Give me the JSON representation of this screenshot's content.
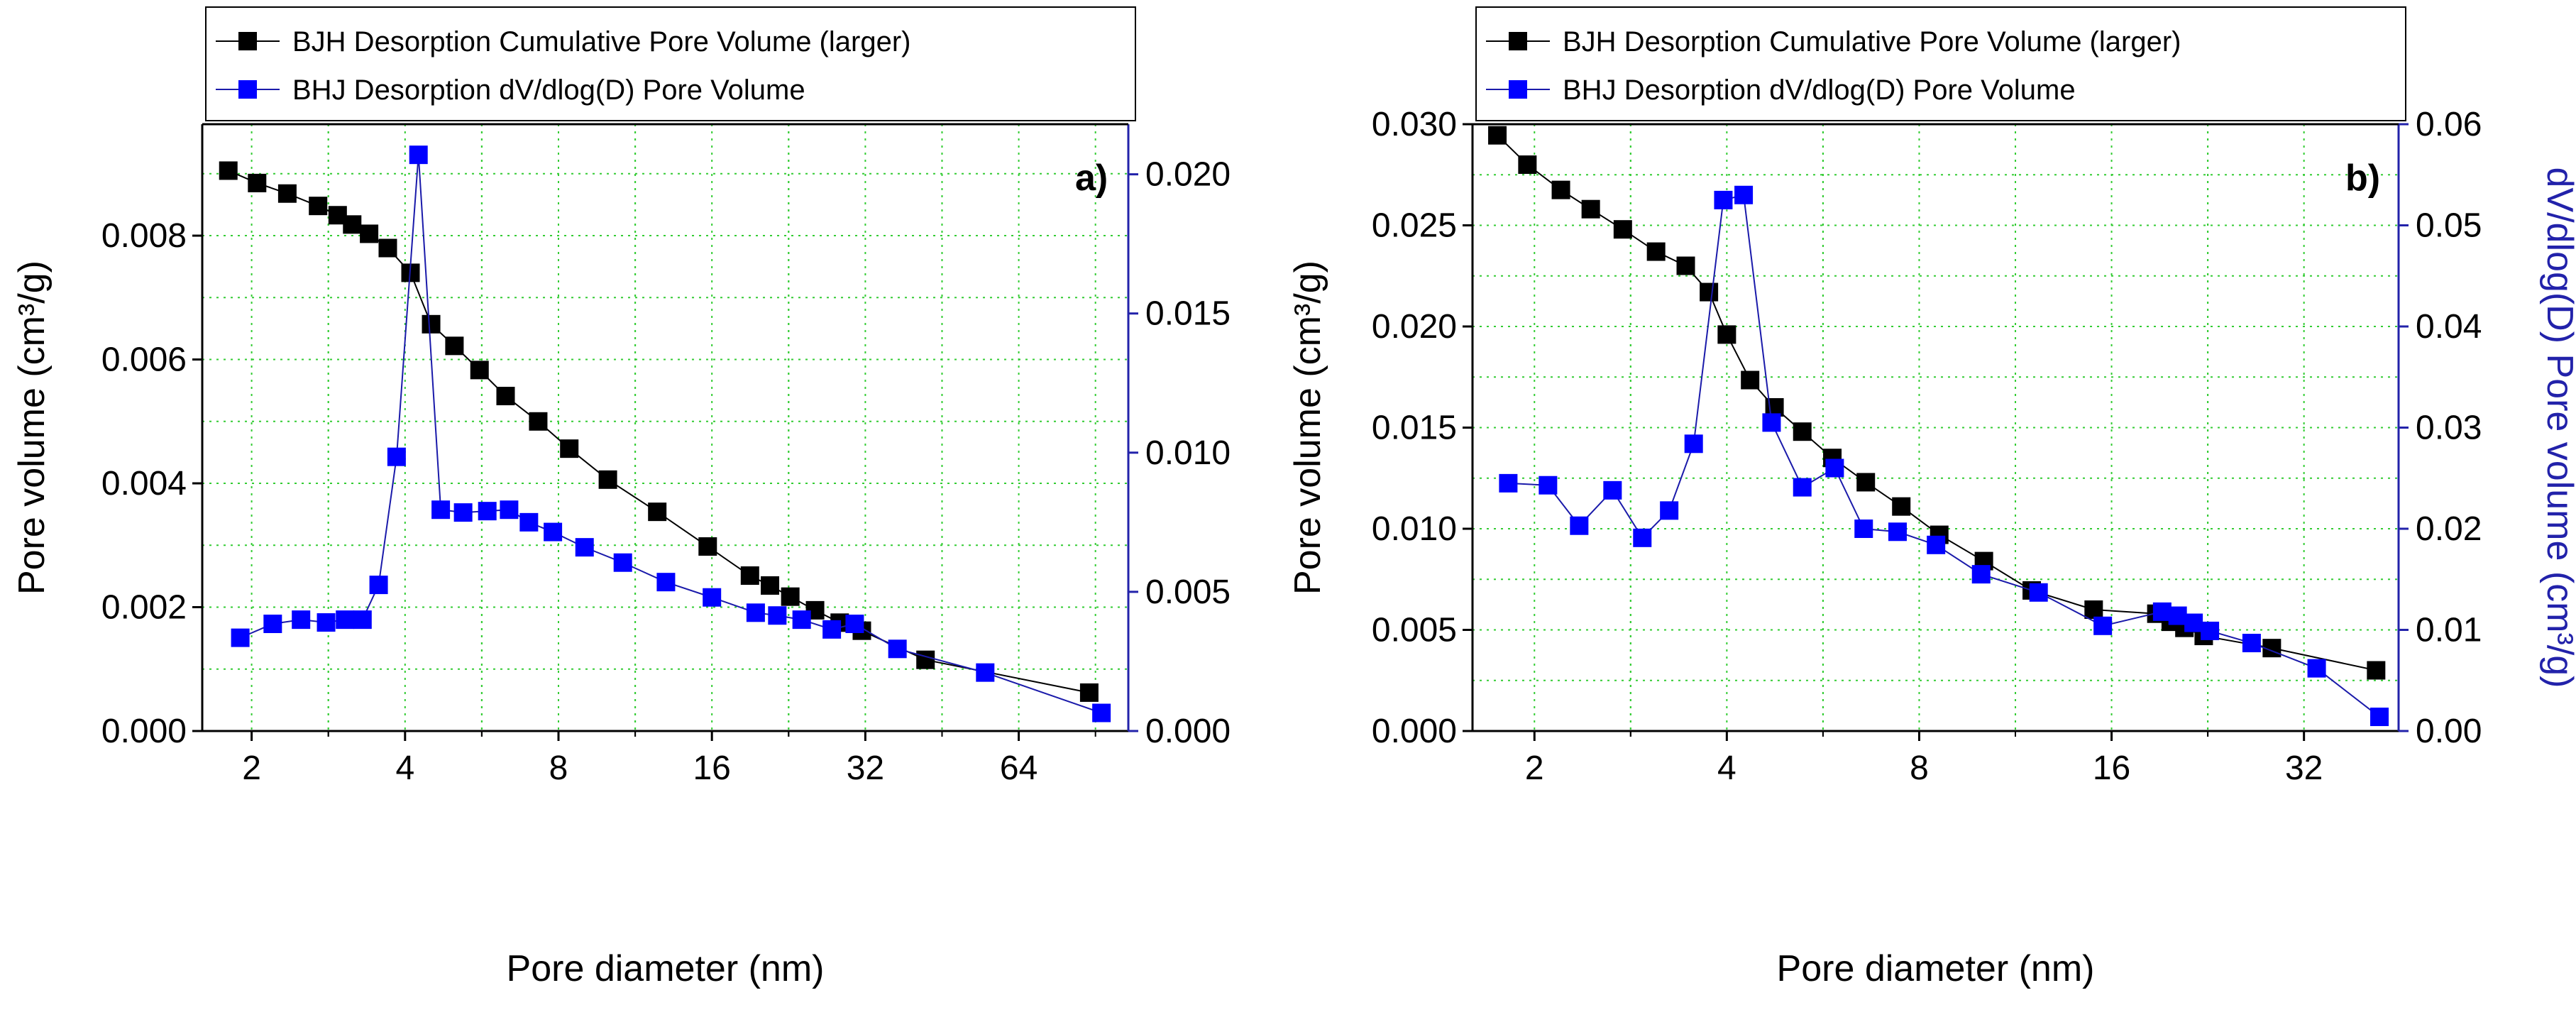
{
  "chart_data": [
    {
      "type": "line",
      "panel_label": "a)",
      "xlabel": "Pore diameter (nm)",
      "ylabel": "Pore volume (cm³/g)",
      "ylabel_right": "",
      "x_scale": "log2",
      "xlim": [
        1.6,
        105
      ],
      "ylim": [
        0,
        0.0098
      ],
      "ylim_right": [
        0,
        0.0218
      ],
      "x_ticks": [
        2,
        4,
        8,
        16,
        32,
        64
      ],
      "x_tick_labels": [
        "2",
        "4",
        "8",
        "16",
        "32",
        "64"
      ],
      "y_ticks": [
        0,
        0.002,
        0.004,
        0.006,
        0.008
      ],
      "y_tick_labels": [
        "0.000",
        "0.002",
        "0.004",
        "0.006",
        "0.008"
      ],
      "y_right_ticks": [
        0,
        0.005,
        0.01,
        0.015,
        0.02
      ],
      "y_right_tick_labels": [
        "0.000",
        "0.005",
        "0.010",
        "0.015",
        "0.020"
      ],
      "grid": true,
      "legend_position": "top-left-outside",
      "series": [
        {
          "name": "BJH Desorption Cumulative Pore Volume (larger)",
          "axis": "left",
          "color": "#000000",
          "marker": "square",
          "x": [
            1.8,
            2.05,
            2.35,
            2.7,
            2.95,
            3.15,
            3.4,
            3.7,
            4.1,
            4.5,
            5.0,
            5.6,
            6.3,
            7.3,
            8.4,
            10.0,
            12.5,
            15.7,
            19.0,
            20.8,
            22.8,
            25.5,
            28.5,
            31.5,
            42.0,
            88.0
          ],
          "y": [
            0.00905,
            0.00885,
            0.00868,
            0.00848,
            0.00833,
            0.00818,
            0.00803,
            0.0078,
            0.0074,
            0.00657,
            0.00622,
            0.00583,
            0.00541,
            0.005,
            0.00456,
            0.00406,
            0.00354,
            0.00298,
            0.00251,
            0.00235,
            0.00217,
            0.00195,
            0.00175,
            0.00162,
            0.00115,
            0.00062
          ]
        },
        {
          "name": "BHJ Desorption dV/dlog(D) Pore Volume",
          "axis": "right",
          "color": "#0000ff",
          "marker": "square",
          "x": [
            1.9,
            2.2,
            2.5,
            2.8,
            3.05,
            3.3,
            3.55,
            3.85,
            4.25,
            4.7,
            5.2,
            5.8,
            6.4,
            7.0,
            7.8,
            9.0,
            10.7,
            13.0,
            16.0,
            19.5,
            21.5,
            24.0,
            27.5,
            30.5,
            37.0,
            55.0,
            93.0
          ],
          "y": [
            0.00335,
            0.00385,
            0.004,
            0.0039,
            0.004,
            0.004,
            0.00525,
            0.00985,
            0.0207,
            0.00795,
            0.00785,
            0.0079,
            0.00795,
            0.0075,
            0.00715,
            0.0066,
            0.00605,
            0.00535,
            0.0048,
            0.00425,
            0.00415,
            0.004,
            0.00365,
            0.00385,
            0.00295,
            0.0021,
            0.00065
          ]
        }
      ]
    },
    {
      "type": "line",
      "panel_label": "b)",
      "xlabel": "Pore diameter (nm)",
      "ylabel": "Pore volume (cm³/g)",
      "ylabel_right": "dV/dlog(D) Pore volume (cm³/g)",
      "x_scale": "log2",
      "xlim": [
        1.6,
        45
      ],
      "ylim": [
        0,
        0.03
      ],
      "ylim_right": [
        0,
        0.06
      ],
      "x_ticks": [
        2,
        4,
        8,
        16,
        32
      ],
      "x_tick_labels": [
        "2",
        "4",
        "8",
        "16",
        "32"
      ],
      "y_ticks": [
        0,
        0.005,
        0.01,
        0.015,
        0.02,
        0.025,
        0.03
      ],
      "y_tick_labels": [
        "0.000",
        "0.005",
        "0.010",
        "0.015",
        "0.020",
        "0.025",
        "0.030"
      ],
      "y_right_ticks": [
        0,
        0.01,
        0.02,
        0.03,
        0.04,
        0.05,
        0.06
      ],
      "y_right_tick_labels": [
        "0.00",
        "0.01",
        "0.02",
        "0.03",
        "0.04",
        "0.05",
        "0.06"
      ],
      "grid": true,
      "legend_position": "top-left-outside",
      "series": [
        {
          "name": "BJH Desorption Cumulative Pore Volume (larger)",
          "axis": "left",
          "color": "#000000",
          "marker": "square",
          "x": [
            1.75,
            1.95,
            2.2,
            2.45,
            2.75,
            3.1,
            3.45,
            3.75,
            4.0,
            4.35,
            4.75,
            5.25,
            5.85,
            6.6,
            7.5,
            8.6,
            10.1,
            12.0,
            15.0,
            18.8,
            19.8,
            20.8,
            22.3,
            28.5,
            41.5
          ],
          "y": [
            0.02945,
            0.028,
            0.02675,
            0.0258,
            0.0248,
            0.0237,
            0.023,
            0.0217,
            0.0196,
            0.01735,
            0.016,
            0.0148,
            0.0135,
            0.0123,
            0.0111,
            0.0097,
            0.0084,
            0.00695,
            0.006,
            0.0058,
            0.0054,
            0.0051,
            0.0047,
            0.0041,
            0.003
          ]
        },
        {
          "name": "BHJ Desorption dV/dlog(D) Pore Volume",
          "axis": "right",
          "color": "#0000ff",
          "marker": "square",
          "x": [
            1.82,
            2.1,
            2.35,
            2.65,
            2.95,
            3.25,
            3.55,
            3.95,
            4.25,
            4.7,
            5.25,
            5.9,
            6.55,
            7.4,
            8.5,
            10.0,
            12.3,
            15.5,
            19.2,
            20.3,
            21.5,
            22.8,
            26.5,
            33.5,
            42.0
          ],
          "y": [
            0.0245,
            0.0243,
            0.0203,
            0.0238,
            0.0191,
            0.0218,
            0.0284,
            0.0525,
            0.053,
            0.0305,
            0.0241,
            0.026,
            0.02,
            0.0197,
            0.0184,
            0.0155,
            0.0137,
            0.0104,
            0.0118,
            0.0114,
            0.0107,
            0.0099,
            0.0087,
            0.0062,
            0.0014
          ]
        }
      ]
    }
  ]
}
